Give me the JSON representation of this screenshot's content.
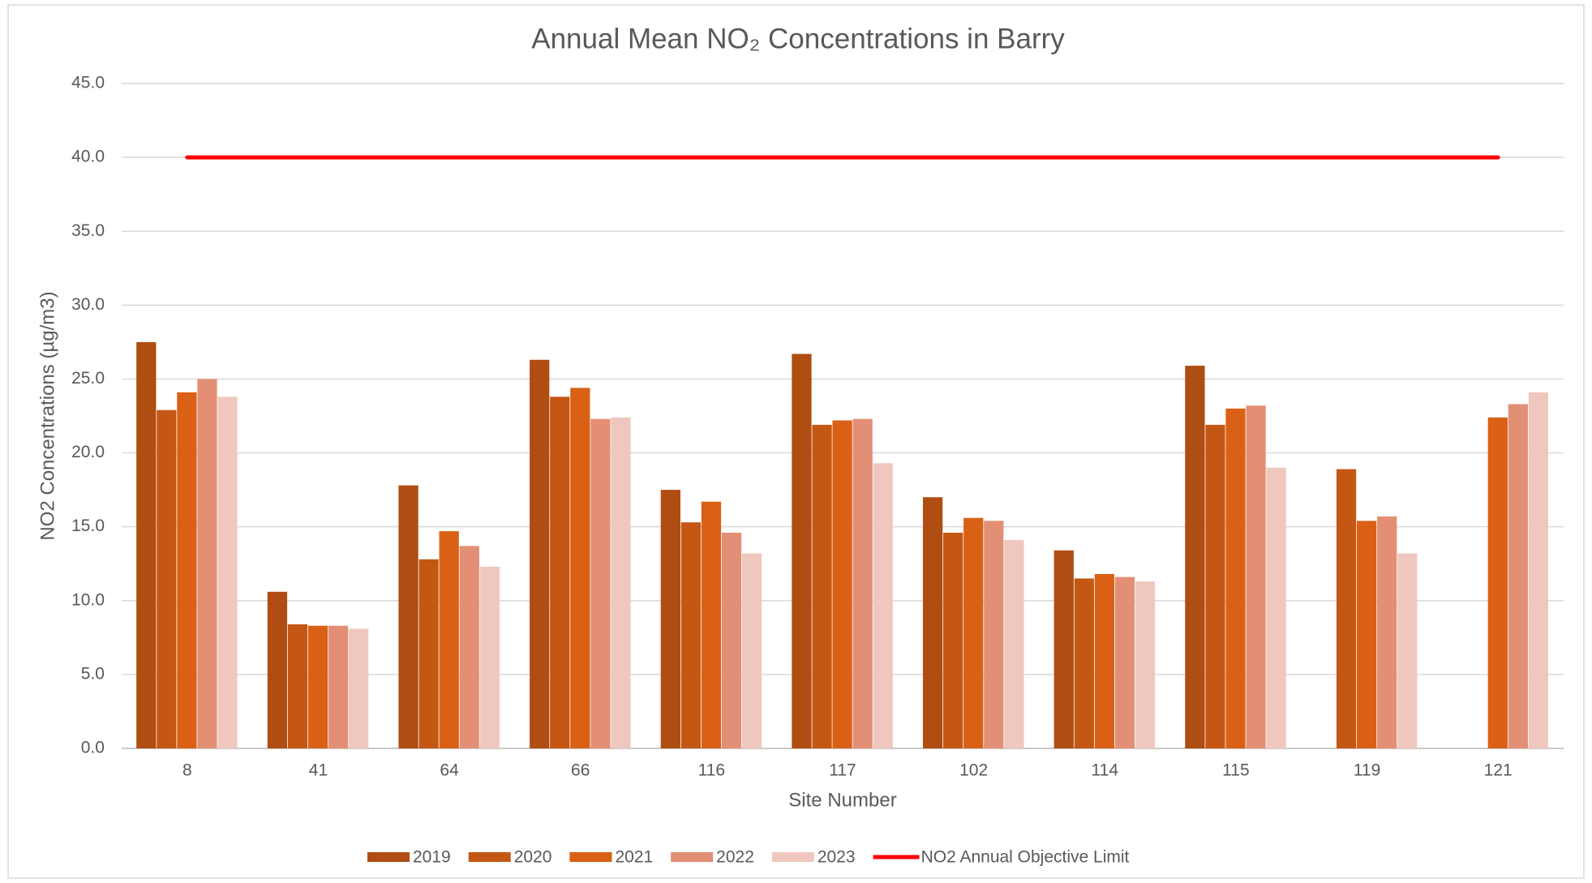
{
  "chart_data": {
    "type": "bar",
    "title": "Annual Mean NO₂ Concentrations in Barry",
    "x_label": "Site Number",
    "y_label": "NO2 Concentrations (µg/m3)",
    "categories": [
      "8",
      "41",
      "64",
      "66",
      "116",
      "117",
      "102",
      "114",
      "115",
      "119",
      "121"
    ],
    "series": [
      {
        "name": "2019",
        "color": "#b04d12",
        "values": [
          27.5,
          10.6,
          17.8,
          26.3,
          17.5,
          26.7,
          17.0,
          13.4,
          25.9,
          null,
          null
        ]
      },
      {
        "name": "2020",
        "color": "#c55714",
        "values": [
          22.9,
          8.4,
          12.8,
          23.8,
          15.3,
          21.9,
          14.6,
          11.5,
          21.9,
          18.9,
          null
        ]
      },
      {
        "name": "2021",
        "color": "#da6016",
        "values": [
          24.1,
          8.3,
          14.7,
          24.4,
          16.7,
          22.2,
          15.6,
          11.8,
          23.0,
          15.4,
          22.4
        ]
      },
      {
        "name": "2022",
        "color": "#e38f75",
        "values": [
          25.0,
          8.3,
          13.7,
          22.3,
          14.6,
          22.3,
          15.4,
          11.6,
          23.2,
          15.7,
          23.3
        ]
      },
      {
        "name": "2023",
        "color": "#f0c7be",
        "values": [
          23.8,
          8.1,
          12.3,
          22.4,
          13.2,
          19.3,
          14.1,
          11.3,
          19.0,
          13.2,
          24.1
        ]
      },
      {
        "name": "NO2 Annual Objective Limit",
        "type": "line",
        "color": "#ff0000",
        "values": [
          40,
          40,
          40,
          40,
          40,
          40,
          40,
          40,
          40,
          40,
          40
        ]
      }
    ],
    "ylim": [
      0,
      45
    ],
    "yticks": [
      {
        "value": 0,
        "label": "0.0"
      },
      {
        "value": 5,
        "label": "5.0"
      },
      {
        "value": 10,
        "label": "10.0"
      },
      {
        "value": 15,
        "label": "15.0"
      },
      {
        "value": 20,
        "label": "20.0"
      },
      {
        "value": 25,
        "label": "25.0"
      },
      {
        "value": 30,
        "label": "30.0"
      },
      {
        "value": 35,
        "label": "35.0"
      },
      {
        "value": 40,
        "label": "40.0"
      },
      {
        "value": 45,
        "label": "45.0"
      }
    ],
    "grid": true,
    "legend": "bottom"
  }
}
